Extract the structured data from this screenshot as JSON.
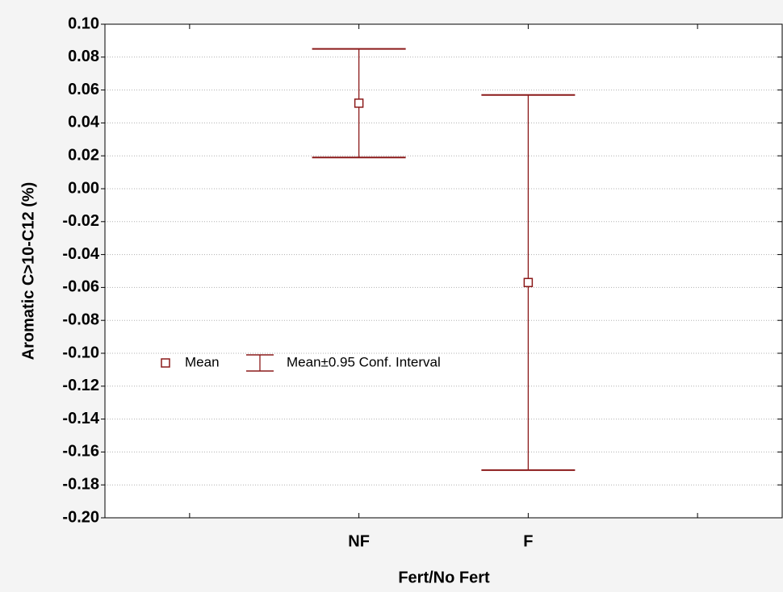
{
  "chart_data": {
    "type": "errorbar",
    "xlabel": "Fert/No Fert",
    "ylabel": "Aromatic C>10-C12  (%)",
    "categories": [
      null,
      "NF",
      "F",
      null
    ],
    "series": [
      {
        "name": "Mean",
        "error_name": "Mean±0.95 Conf. Interval",
        "color": "#8b1a1a",
        "values": [
          null,
          0.052,
          -0.057,
          null
        ],
        "errors": [
          null,
          0.033,
          0.114,
          null
        ]
      }
    ],
    "ylim": [
      -0.2,
      0.1
    ],
    "yticks": [
      {
        "value": 0.1,
        "label": "0.10"
      },
      {
        "value": 0.08,
        "label": "0.08"
      },
      {
        "value": 0.06,
        "label": "0.06"
      },
      {
        "value": 0.04,
        "label": "0.04"
      },
      {
        "value": 0.02,
        "label": "0.02"
      },
      {
        "value": 0,
        "label": "0.00"
      },
      {
        "value": -0.02,
        "label": "-0.02"
      },
      {
        "value": -0.04,
        "label": "-0.04"
      },
      {
        "value": -0.06,
        "label": "-0.06"
      },
      {
        "value": -0.08,
        "label": "-0.08"
      },
      {
        "value": -0.1,
        "label": "-0.10"
      },
      {
        "value": -0.12,
        "label": "-0.12"
      },
      {
        "value": -0.14,
        "label": "-0.14"
      },
      {
        "value": -0.16,
        "label": "-0.16"
      },
      {
        "value": -0.18,
        "label": "-0.18"
      },
      {
        "value": -0.2,
        "label": "-0.20"
      }
    ],
    "grid": true,
    "legend": "left"
  }
}
